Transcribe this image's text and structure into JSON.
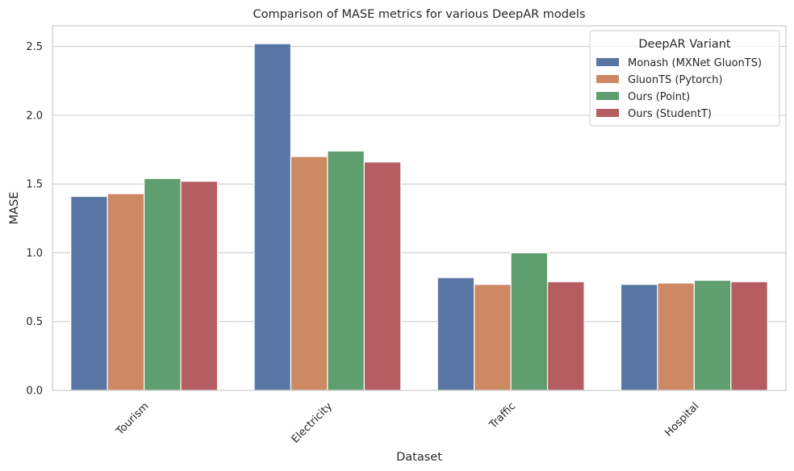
{
  "chart_data": {
    "type": "bar",
    "title": "Comparison of MASE metrics for various DeepAR models",
    "xlabel": "Dataset",
    "ylabel": "MASE",
    "categories": [
      "Tourism",
      "Electricity",
      "Traffic",
      "Hospital"
    ],
    "series": [
      {
        "name": "Monash (MXNet GluonTS)",
        "color": "#5875a4",
        "values": [
          1.41,
          2.52,
          0.82,
          0.77
        ]
      },
      {
        "name": "GluonTS (Pytorch)",
        "color": "#cc8963",
        "values": [
          1.43,
          1.7,
          0.77,
          0.78
        ]
      },
      {
        "name": "Ours (Point)",
        "color": "#5f9e6e",
        "values": [
          1.54,
          1.74,
          1.0,
          0.8
        ]
      },
      {
        "name": "Ours (StudentT)",
        "color": "#b55d60",
        "values": [
          1.52,
          1.66,
          0.79,
          0.79
        ]
      }
    ],
    "ylim": [
      0,
      2.65
    ],
    "yticks": [
      0.0,
      0.5,
      1.0,
      1.5,
      2.0,
      2.5
    ],
    "ytick_labels": [
      "0.0",
      "0.5",
      "1.0",
      "1.5",
      "2.0",
      "2.5"
    ],
    "grid": "y",
    "legend": {
      "title": "DeepAR Variant",
      "placement": "upper-right"
    },
    "xtick_rotation_deg": 45
  }
}
